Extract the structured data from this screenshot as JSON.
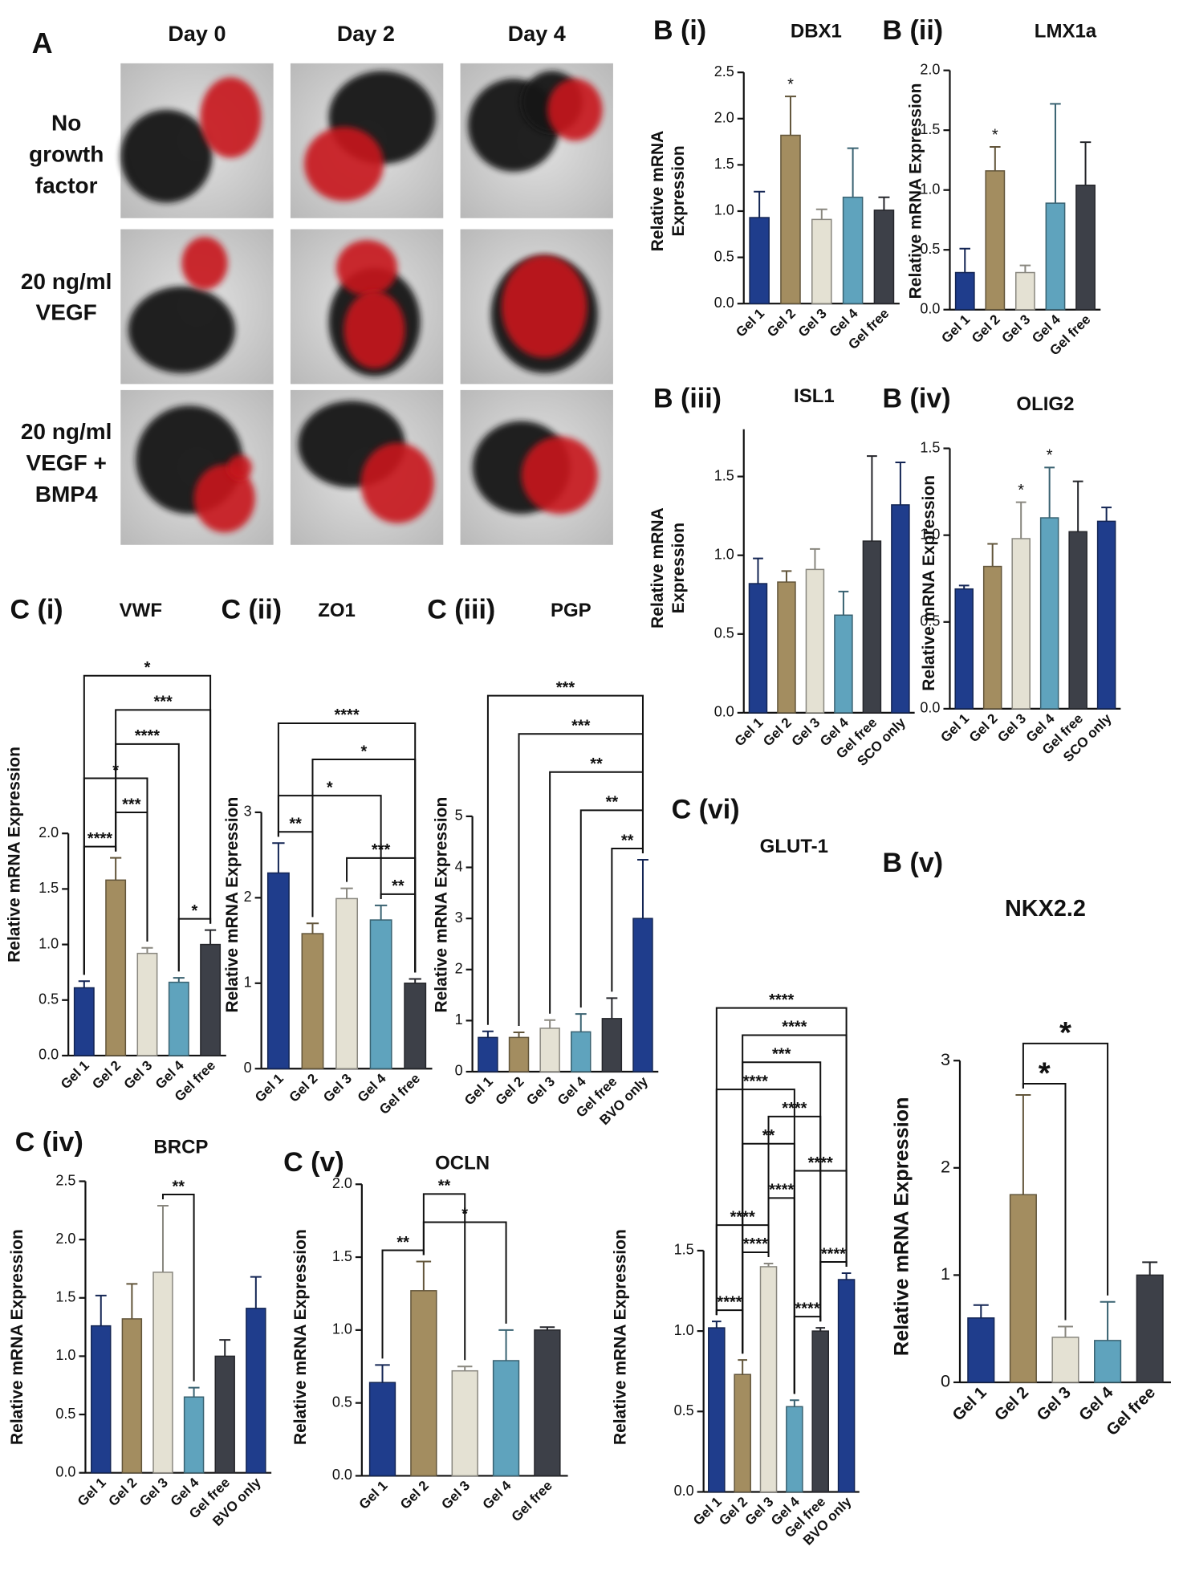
{
  "panel_a": {
    "label": "A",
    "columns": [
      "Day 0",
      "Day 2",
      "Day 4"
    ],
    "rows": [
      [
        "No",
        "growth",
        "factor"
      ],
      [
        "20 ng/ml",
        "VEGF"
      ],
      [
        "20 ng/ml",
        "VEGF +",
        "BMP4"
      ]
    ]
  },
  "chart_data": [
    {
      "type": "bar",
      "panel_label": "B (i)",
      "title": "DBX1",
      "ylabel": [
        "Relative mRNA",
        "Expression"
      ],
      "categories": [
        "Gel 1",
        "Gel 2",
        "Gel 3",
        "Gel 4",
        "Gel free"
      ],
      "values": [
        0.93,
        1.82,
        0.91,
        1.15,
        1.01
      ],
      "errors": [
        0.28,
        0.42,
        0.11,
        0.53,
        0.14
      ],
      "colors": [
        "#1f3d8c",
        "#a38d60",
        "#e4e1d3",
        "#5fa3bd",
        "#3d4048"
      ],
      "ylim": [
        0,
        2.5
      ],
      "yticks": [
        {
          "value": 0,
          "label": "0.0"
        },
        0.5,
        {
          "value": 1,
          "label": "1.0"
        },
        1.5,
        {
          "value": 2,
          "label": "2.0"
        },
        2.5
      ],
      "comparisons": [],
      "markers": [
        {
          "group": "Gel 2",
          "label": "*"
        }
      ]
    },
    {
      "type": "bar",
      "panel_label": "B (ii)",
      "title": "LMX1a",
      "ylabel": "Relative mRNA Expression",
      "categories": [
        "Gel 1",
        "Gel 2",
        "Gel 3",
        "Gel 4",
        "Gel free"
      ],
      "values": [
        0.31,
        1.16,
        0.31,
        0.89,
        1.04
      ],
      "errors": [
        0.2,
        0.2,
        0.06,
        0.83,
        0.36
      ],
      "colors": [
        "#1f3d8c",
        "#a38d60",
        "#e4e1d3",
        "#5fa3bd",
        "#3d4048"
      ],
      "ylim": [
        0,
        2
      ],
      "yticks": [
        {
          "value": 0,
          "label": "0.0"
        },
        0.5,
        {
          "value": 1,
          "label": "1.0"
        },
        1.5,
        {
          "value": 2,
          "label": "2.0"
        }
      ],
      "comparisons": [],
      "markers": [
        {
          "group": "Gel 2",
          "label": "*"
        }
      ]
    },
    {
      "type": "bar",
      "panel_label": "B (iii)",
      "title": "ISL1",
      "ylabel": [
        "Relative mRNA",
        "Expression"
      ],
      "categories": [
        "Gel 1",
        "Gel 2",
        "Gel 3",
        "Gel 4",
        "Gel free",
        "SCO only"
      ],
      "values": [
        0.82,
        0.83,
        0.91,
        0.62,
        1.09,
        1.32
      ],
      "errors": [
        0.16,
        0.07,
        0.13,
        0.15,
        0.54,
        0.27
      ],
      "colors": [
        "#1f3d8c",
        "#a38d60",
        "#e4e1d3",
        "#5fa3bd",
        "#3d4048",
        "#1f3d8c"
      ],
      "ylim": [
        0,
        1.8
      ],
      "yticks": [
        {
          "value": 0,
          "label": "0.0"
        },
        0.5,
        {
          "value": 1,
          "label": "1.0"
        },
        1.5
      ],
      "comparisons": [],
      "markers": []
    },
    {
      "type": "bar",
      "panel_label": "B (iv)",
      "title": "OLIG2",
      "ylabel": "Relative mRNA Expression",
      "categories": [
        "Gel 1",
        "Gel 2",
        "Gel 3",
        "Gel 4",
        "Gel free",
        "SCO only"
      ],
      "values": [
        0.69,
        0.82,
        0.98,
        1.1,
        1.02,
        1.08
      ],
      "errors": [
        0.02,
        0.13,
        0.21,
        0.29,
        0.29,
        0.08
      ],
      "colors": [
        "#1f3d8c",
        "#a38d60",
        "#e4e1d3",
        "#5fa3bd",
        "#3d4048",
        "#1f3d8c"
      ],
      "ylim": [
        0,
        1.5
      ],
      "yticks": [
        {
          "value": 0,
          "label": "0.0"
        },
        0.5,
        {
          "value": 1,
          "label": "1.0"
        },
        1.5
      ],
      "comparisons": [],
      "markers": [
        {
          "group": "Gel 3",
          "label": "*"
        },
        {
          "group": "Gel 4",
          "label": "*"
        }
      ]
    },
    {
      "type": "bar",
      "panel_label": "C (i)",
      "title": "VWF",
      "ylabel": "Relative mRNA Expression",
      "categories": [
        "Gel 1",
        "Gel 2",
        "Gel 3",
        "Gel 4",
        "Gel free"
      ],
      "values": [
        0.61,
        1.58,
        0.92,
        0.66,
        1.0
      ],
      "errors": [
        0.06,
        0.2,
        0.05,
        0.04,
        0.13
      ],
      "colors": [
        "#1f3d8c",
        "#a38d60",
        "#e4e1d3",
        "#5fa3bd",
        "#3d4048"
      ],
      "ylim": [
        0,
        2
      ],
      "yticks": [
        {
          "value": 0,
          "label": "0.0"
        },
        0.5,
        {
          "value": 1,
          "label": "1.0"
        },
        1.5,
        {
          "value": 2,
          "label": "2.0"
        }
      ],
      "comparisons": [
        {
          "groups": [
            "Gel 1",
            "Gel 2"
          ],
          "label": "****"
        },
        {
          "groups": [
            "Gel 4",
            "Gel free"
          ],
          "label": "*"
        },
        {
          "groups": [
            "Gel 2",
            "Gel 3"
          ],
          "label": "***"
        },
        {
          "groups": [
            "Gel 1",
            "Gel 3"
          ],
          "label": "*"
        },
        {
          "groups": [
            "Gel 2",
            "Gel 4"
          ],
          "label": "****"
        },
        {
          "groups": [
            "Gel 2",
            "Gel free"
          ],
          "label": "***"
        },
        {
          "groups": [
            "Gel 1",
            "Gel free"
          ],
          "label": "*"
        }
      ],
      "markers": []
    },
    {
      "type": "bar",
      "panel_label": "C (ii)",
      "title": "ZO1",
      "ylabel": "Relative mRNA Expression",
      "categories": [
        "Gel 1",
        "Gel 2",
        "Gel 3",
        "Gel 4",
        "Gel free"
      ],
      "values": [
        2.29,
        1.58,
        1.99,
        1.74,
        1.0
      ],
      "errors": [
        0.35,
        0.12,
        0.12,
        0.17,
        0.05
      ],
      "colors": [
        "#1f3d8c",
        "#a38d60",
        "#e4e1d3",
        "#5fa3bd",
        "#3d4048"
      ],
      "ylim": [
        0,
        3
      ],
      "yticks": [
        0,
        1,
        2,
        3
      ],
      "comparisons": [
        {
          "groups": [
            "Gel 1",
            "Gel 2"
          ],
          "label": "**"
        },
        {
          "groups": [
            "Gel 4",
            "Gel free"
          ],
          "label": "**"
        },
        {
          "groups": [
            "Gel 3",
            "Gel free"
          ],
          "label": "***"
        },
        {
          "groups": [
            "Gel 1",
            "Gel 4"
          ],
          "label": "*"
        },
        {
          "groups": [
            "Gel 2",
            "Gel free"
          ],
          "label": "*"
        },
        {
          "groups": [
            "Gel 1",
            "Gel free"
          ],
          "label": "****"
        }
      ],
      "markers": []
    },
    {
      "type": "bar",
      "panel_label": "C (iii)",
      "title": "PGP",
      "ylabel": "Relative mRNA Expression",
      "categories": [
        "Gel 1",
        "Gel 2",
        "Gel 3",
        "Gel 4",
        "Gel free",
        "BVO only"
      ],
      "values": [
        0.67,
        0.67,
        0.85,
        0.78,
        1.04,
        3.0
      ],
      "errors": [
        0.12,
        0.1,
        0.16,
        0.35,
        0.4,
        1.15
      ],
      "colors": [
        "#1f3d8c",
        "#a38d60",
        "#e4e1d3",
        "#5fa3bd",
        "#3d4048",
        "#1f3d8c"
      ],
      "ylim": [
        0,
        5
      ],
      "yticks": [
        0,
        1,
        2,
        3,
        4,
        5
      ],
      "comparisons": [
        {
          "groups": [
            "Gel free",
            "BVO only"
          ],
          "label": "**"
        },
        {
          "groups": [
            "Gel 4",
            "BVO only"
          ],
          "label": "**"
        },
        {
          "groups": [
            "Gel 3",
            "BVO only"
          ],
          "label": "**"
        },
        {
          "groups": [
            "Gel 2",
            "BVO only"
          ],
          "label": "***"
        },
        {
          "groups": [
            "Gel 1",
            "BVO only"
          ],
          "label": "***"
        }
      ],
      "markers": []
    },
    {
      "type": "bar",
      "panel_label": "C (iv)",
      "title": "BRCP",
      "ylabel": "Relative mRNA Expression",
      "categories": [
        "Gel 1",
        "Gel 2",
        "Gel 3",
        "Gel 4",
        "Gel free",
        "BVO only"
      ],
      "values": [
        1.26,
        1.32,
        1.72,
        0.65,
        1.0,
        1.41
      ],
      "errors": [
        0.26,
        0.3,
        0.57,
        0.08,
        0.14,
        0.27
      ],
      "colors": [
        "#1f3d8c",
        "#a38d60",
        "#e4e1d3",
        "#5fa3bd",
        "#3d4048",
        "#1f3d8c"
      ],
      "ylim": [
        0,
        2.5
      ],
      "yticks": [
        {
          "value": 0,
          "label": "0.0"
        },
        0.5,
        {
          "value": 1,
          "label": "1.0"
        },
        1.5,
        {
          "value": 2,
          "label": "2.0"
        },
        2.5
      ],
      "comparisons": [
        {
          "groups": [
            "Gel 3",
            "Gel 4"
          ],
          "label": "**"
        }
      ],
      "markers": []
    },
    {
      "type": "bar",
      "panel_label": "C (v)",
      "title": "OCLN",
      "ylabel": "Relative mRNA Expression",
      "categories": [
        "Gel 1",
        "Gel 2",
        "Gel 3",
        "Gel 4",
        "Gel free"
      ],
      "values": [
        0.64,
        1.27,
        0.72,
        0.79,
        1.0
      ],
      "errors": [
        0.12,
        0.2,
        0.03,
        0.21,
        0.02
      ],
      "colors": [
        "#1f3d8c",
        "#a38d60",
        "#e4e1d3",
        "#5fa3bd",
        "#3d4048"
      ],
      "ylim": [
        0,
        2
      ],
      "yticks": [
        {
          "value": 0,
          "label": "0.0"
        },
        0.5,
        {
          "value": 1,
          "label": "1.0"
        },
        1.5,
        {
          "value": 2,
          "label": "2.0"
        }
      ],
      "comparisons": [
        {
          "groups": [
            "Gel 1",
            "Gel 2"
          ],
          "label": "**"
        },
        {
          "groups": [
            "Gel 2",
            "Gel 4"
          ],
          "label": "*"
        },
        {
          "groups": [
            "Gel 2",
            "Gel 3"
          ],
          "label": "**"
        }
      ],
      "markers": []
    },
    {
      "type": "bar",
      "panel_label": "C (vi)",
      "title": "GLUT-1",
      "ylabel": "Relative mRNA Expression",
      "categories": [
        "Gel 1",
        "Gel 2",
        "Gel 3",
        "Gel 4",
        "Gel free",
        "BVO only"
      ],
      "values": [
        1.02,
        0.73,
        1.4,
        0.53,
        1.0,
        1.32
      ],
      "errors": [
        0.04,
        0.09,
        0.02,
        0.04,
        0.02,
        0.04
      ],
      "colors": [
        "#1f3d8c",
        "#a38d60",
        "#e4e1d3",
        "#5fa3bd",
        "#3d4048",
        "#1f3d8c"
      ],
      "ylim": [
        0,
        1.5
      ],
      "yticks": [
        {
          "value": 0,
          "label": "0.0"
        },
        0.5,
        {
          "value": 1,
          "label": "1.0"
        },
        1.5
      ],
      "comparisons": [
        {
          "groups": [
            "Gel 1",
            "Gel 2"
          ],
          "label": "****"
        },
        {
          "groups": [
            "Gel 2",
            "Gel 3"
          ],
          "label": "****"
        },
        {
          "groups": [
            "Gel 4",
            "Gel free"
          ],
          "label": "****"
        },
        {
          "groups": [
            "Gel free",
            "BVO only"
          ],
          "label": "****"
        },
        {
          "groups": [
            "Gel 1",
            "Gel 3"
          ],
          "label": "****"
        },
        {
          "groups": [
            "Gel 3",
            "Gel 4"
          ],
          "label": "****"
        },
        {
          "groups": [
            "Gel 4",
            "BVO only"
          ],
          "label": "****"
        },
        {
          "groups": [
            "Gel 2",
            "Gel 4"
          ],
          "label": "**"
        },
        {
          "groups": [
            "Gel 3",
            "Gel free"
          ],
          "label": "****"
        },
        {
          "groups": [
            "Gel 1",
            "Gel 4"
          ],
          "label": "****"
        },
        {
          "groups": [
            "Gel 2",
            "Gel free"
          ],
          "label": "***"
        },
        {
          "groups": [
            "Gel 2",
            "BVO only"
          ],
          "label": "****"
        },
        {
          "groups": [
            "Gel 1",
            "BVO only"
          ],
          "label": "****"
        }
      ],
      "markers": []
    },
    {
      "type": "bar",
      "panel_label": "B (v)",
      "title": "NKX2.2",
      "ylabel": "Relative mRNA Expression",
      "categories": [
        "Gel 1",
        "Gel 2",
        "Gel 3",
        "Gel 4",
        "Gel free"
      ],
      "values": [
        0.6,
        1.75,
        0.42,
        0.39,
        1.0
      ],
      "errors": [
        0.12,
        0.93,
        0.1,
        0.36,
        0.12
      ],
      "colors": [
        "#1f3d8c",
        "#a38d60",
        "#e4e1d3",
        "#5fa3bd",
        "#3d4048"
      ],
      "ylim": [
        0,
        3
      ],
      "yticks": [
        0,
        1,
        2,
        3
      ],
      "comparisons": [
        {
          "groups": [
            "Gel 2",
            "Gel 3"
          ],
          "label": "*"
        },
        {
          "groups": [
            "Gel 2",
            "Gel 4"
          ],
          "label": "*"
        }
      ],
      "markers": []
    }
  ]
}
